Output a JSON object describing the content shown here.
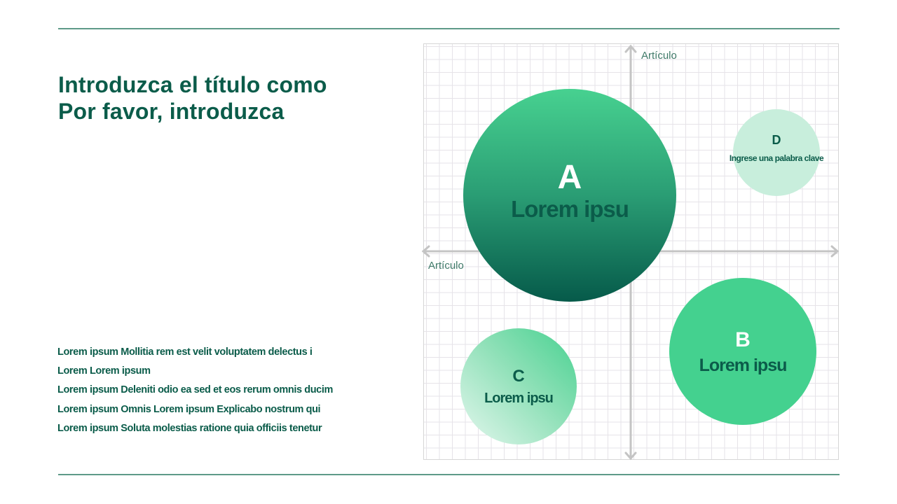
{
  "title": {
    "line1": "Introduzca el título como",
    "line2": "Por favor, introduzca"
  },
  "bullets": [
    "Lorem ipsum Mollitia rem est velit voluptatem delectus i",
    "Lorem Lorem ipsum",
    "Lorem ipsum Deleniti odio ea sed et eos rerum omnis ducim",
    "Lorem ipsum Omnis Lorem ipsum Explicabo nostrum qui",
    "Lorem ipsum Soluta molestias ratione quia officiis tenetur"
  ],
  "diagram": {
    "y_axis_label": "Artículo",
    "x_axis_label": "Artículo",
    "bubbles": [
      {
        "letter": "A",
        "text": "Lorem ipsu",
        "color": "#2a9d74"
      },
      {
        "letter": "B",
        "text": "Lorem ipsu",
        "color": "#44d18f"
      },
      {
        "letter": "C",
        "text": "Lorem ipsu",
        "color": "#7fdcae"
      },
      {
        "letter": "D",
        "text": "Ingrese una palabra clave",
        "color": "#c8eedc"
      }
    ]
  },
  "colors": {
    "primary": "#0b5c4a",
    "accent": "#44d18f",
    "rule": "#5e9a88"
  }
}
